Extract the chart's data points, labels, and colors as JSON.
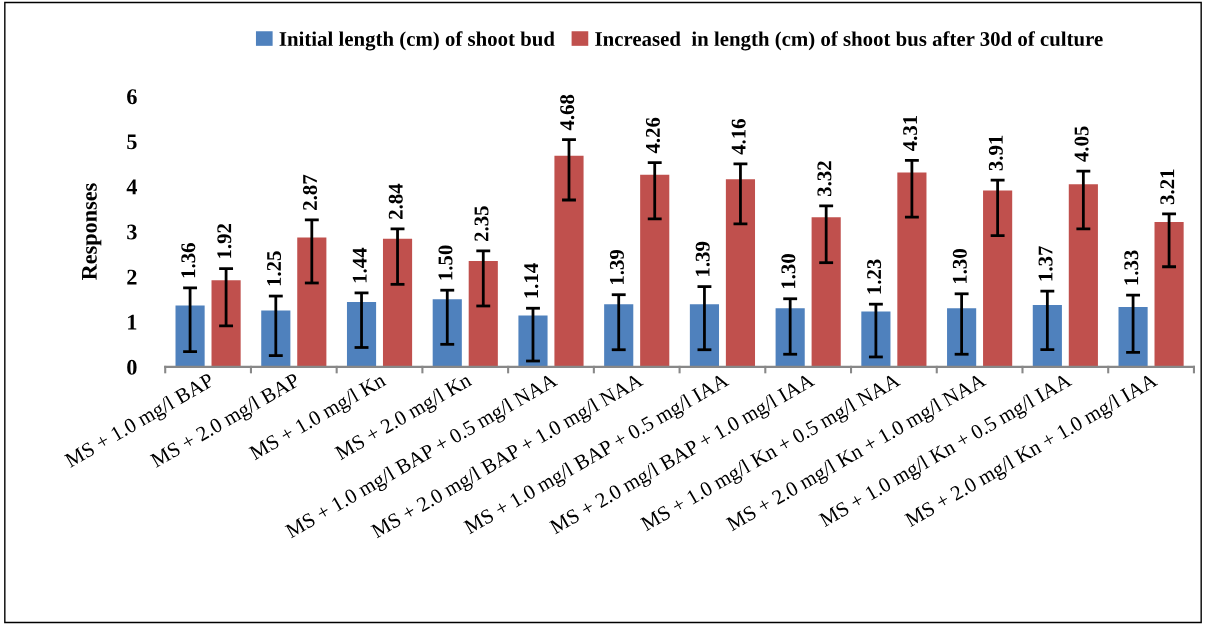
{
  "chart_data": {
    "type": "bar",
    "ylabel": "Responses",
    "categories": [
      "MS + 1.0 mg/l BAP",
      "MS + 2.0 mg/l BAP",
      "MS + 1.0 mg/l Kn",
      "MS + 2.0 mg/l Kn",
      "MS + 1.0 mg/l BAP + 0.5 mg/l NAA",
      "MS + 2.0 mg/l BAP + 1.0 mg/l NAA",
      "MS + 1.0 mg/l BAP + 0.5 mg/l IAA",
      "MS + 2.0 mg/l BAP + 1.0 mg/l IAA",
      "MS + 1.0 mg/l Kn + 0.5 mg/l NAA",
      "MS + 2.0 mg/l Kn + 1.0 mg/l NAA",
      "MS + 1.0 mg/l Kn + 0.5 mg/l IAA",
      "MS + 2.0 mg/l Kn + 1.0 mg/l IAA"
    ],
    "series": [
      {
        "name": "Initial length (cm) of shoot bud",
        "color": "#4f81bd",
        "values": [
          1.36,
          1.25,
          1.44,
          1.5,
          1.14,
          1.39,
          1.39,
          1.3,
          1.23,
          1.3,
          1.37,
          1.33
        ],
        "value_labels": [
          "1.36",
          "1.25",
          "1.44",
          "1.50",
          "1.14",
          "1.39",
          "1.39",
          "1.30",
          "1.23",
          "1.30",
          "1.37",
          "1.33"
        ],
        "errors": [
          [
            0.34,
            1.75
          ],
          [
            0.25,
            1.57
          ],
          [
            0.43,
            1.64
          ],
          [
            0.5,
            1.7
          ],
          [
            0.13,
            1.3
          ],
          [
            0.38,
            1.6
          ],
          [
            0.38,
            1.78
          ],
          [
            0.28,
            1.51
          ],
          [
            0.22,
            1.39
          ],
          [
            0.28,
            1.62
          ],
          [
            0.38,
            1.68
          ],
          [
            0.32,
            1.59
          ]
        ]
      },
      {
        "name": "Increased  in length (cm) of shoot bus after 30d of culture",
        "color": "#c0504d",
        "values": [
          1.92,
          2.87,
          2.84,
          2.35,
          4.68,
          4.26,
          4.16,
          3.32,
          4.31,
          3.91,
          4.05,
          3.21
        ],
        "value_labels": [
          "1.92",
          "2.87",
          "2.84",
          "2.35",
          "4.68",
          "4.26",
          "4.16",
          "3.32",
          "4.31",
          "3.91",
          "4.05",
          "3.21"
        ],
        "errors": [
          [
            0.91,
            2.18
          ],
          [
            1.86,
            3.26
          ],
          [
            1.83,
            3.06
          ],
          [
            1.35,
            2.57
          ],
          [
            3.7,
            5.04
          ],
          [
            3.28,
            4.53
          ],
          [
            3.17,
            4.5
          ],
          [
            2.31,
            3.57
          ],
          [
            3.32,
            4.58
          ],
          [
            2.91,
            4.14
          ],
          [
            3.06,
            4.34
          ],
          [
            2.22,
            3.39
          ]
        ]
      }
    ],
    "ylim": [
      0,
      6
    ],
    "yticks": [
      0,
      1,
      2,
      3,
      4,
      5,
      6
    ],
    "legend": "top",
    "grid": false
  }
}
